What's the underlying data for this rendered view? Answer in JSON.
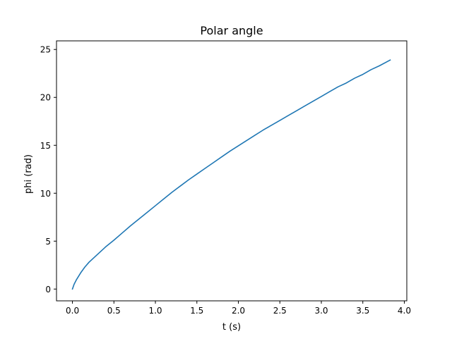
{
  "chart_data": {
    "type": "line",
    "title": "Polar angle",
    "xlabel": "t (s)",
    "ylabel": "phi (rad)",
    "xlim": [
      -0.192,
      4.03
    ],
    "ylim": [
      -1.23,
      25.9
    ],
    "xticks": [
      0.0,
      0.5,
      1.0,
      1.5,
      2.0,
      2.5,
      3.0,
      3.5,
      4.0
    ],
    "xtick_labels": [
      "0.0",
      "0.5",
      "1.0",
      "1.5",
      "2.0",
      "2.5",
      "3.0",
      "3.5",
      "4.0"
    ],
    "yticks": [
      0,
      5,
      10,
      15,
      20,
      25
    ],
    "ytick_labels": [
      "0",
      "5",
      "10",
      "15",
      "20",
      "25"
    ],
    "grid": false,
    "legend": "none",
    "series": [
      {
        "color": "#1f77b4",
        "x": [
          0.0,
          0.02,
          0.05,
          0.1,
          0.15,
          0.2,
          0.3,
          0.4,
          0.5,
          0.6,
          0.7,
          0.8,
          0.9,
          1.0,
          1.1,
          1.2,
          1.3,
          1.4,
          1.5,
          1.6,
          1.7,
          1.8,
          1.9,
          2.0,
          2.1,
          2.2,
          2.3,
          2.4,
          2.5,
          2.6,
          2.7,
          2.8,
          2.9,
          3.0,
          3.1,
          3.2,
          3.3,
          3.4,
          3.5,
          3.6,
          3.7,
          3.83
        ],
        "y": [
          0.0,
          0.5,
          1.0,
          1.7,
          2.3,
          2.8,
          3.6,
          4.4,
          5.1,
          5.85,
          6.6,
          7.3,
          8.0,
          8.7,
          9.4,
          10.1,
          10.75,
          11.4,
          12.0,
          12.6,
          13.2,
          13.8,
          14.4,
          14.95,
          15.5,
          16.05,
          16.6,
          17.1,
          17.6,
          18.1,
          18.6,
          19.1,
          19.6,
          20.1,
          20.6,
          21.1,
          21.5,
          22.0,
          22.4,
          22.9,
          23.3,
          23.9
        ]
      }
    ]
  }
}
